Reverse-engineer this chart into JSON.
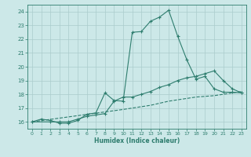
{
  "xlabel": "Humidex (Indice chaleur)",
  "bg_color": "#cce8e8",
  "grid_color": "#aacccc",
  "line_color": "#2e7d6e",
  "xlim": [
    -0.5,
    23.5
  ],
  "ylim": [
    15.5,
    24.5
  ],
  "xticks": [
    0,
    1,
    2,
    3,
    4,
    5,
    6,
    7,
    8,
    9,
    10,
    11,
    12,
    13,
    14,
    15,
    16,
    17,
    18,
    19,
    20,
    21,
    22,
    23
  ],
  "yticks": [
    16,
    17,
    18,
    19,
    20,
    21,
    22,
    23,
    24
  ],
  "line1_x": [
    0,
    1,
    2,
    3,
    4,
    5,
    6,
    7,
    8,
    9,
    10,
    11,
    12,
    13,
    14,
    15,
    16,
    17,
    18,
    19,
    20,
    21,
    22,
    23
  ],
  "line1_y": [
    16.0,
    16.2,
    16.1,
    15.9,
    15.9,
    16.1,
    16.55,
    16.65,
    18.1,
    17.55,
    17.5,
    22.5,
    22.55,
    23.3,
    23.6,
    24.1,
    22.2,
    20.5,
    19.1,
    19.3,
    18.4,
    18.15,
    18.15,
    18.1
  ],
  "line2_x": [
    0,
    2,
    3,
    4,
    5,
    6,
    7,
    8,
    9,
    10,
    11,
    12,
    13,
    14,
    15,
    16,
    17,
    18,
    19,
    20,
    21,
    22,
    23
  ],
  "line2_y": [
    16.0,
    16.0,
    16.0,
    16.0,
    16.2,
    16.4,
    16.5,
    16.6,
    17.5,
    17.8,
    17.8,
    18.0,
    18.2,
    18.5,
    18.7,
    19.0,
    19.2,
    19.3,
    19.5,
    19.7,
    19.0,
    18.4,
    18.1
  ],
  "line3_x": [
    0,
    1,
    2,
    3,
    4,
    5,
    6,
    7,
    8,
    9,
    10,
    11,
    12,
    13,
    14,
    15,
    16,
    17,
    18,
    19,
    20,
    21,
    22,
    23
  ],
  "line3_y": [
    16.0,
    16.09,
    16.18,
    16.27,
    16.36,
    16.45,
    16.54,
    16.63,
    16.72,
    16.81,
    16.9,
    17.0,
    17.1,
    17.2,
    17.35,
    17.5,
    17.6,
    17.7,
    17.8,
    17.85,
    17.9,
    18.0,
    18.1,
    18.2
  ]
}
